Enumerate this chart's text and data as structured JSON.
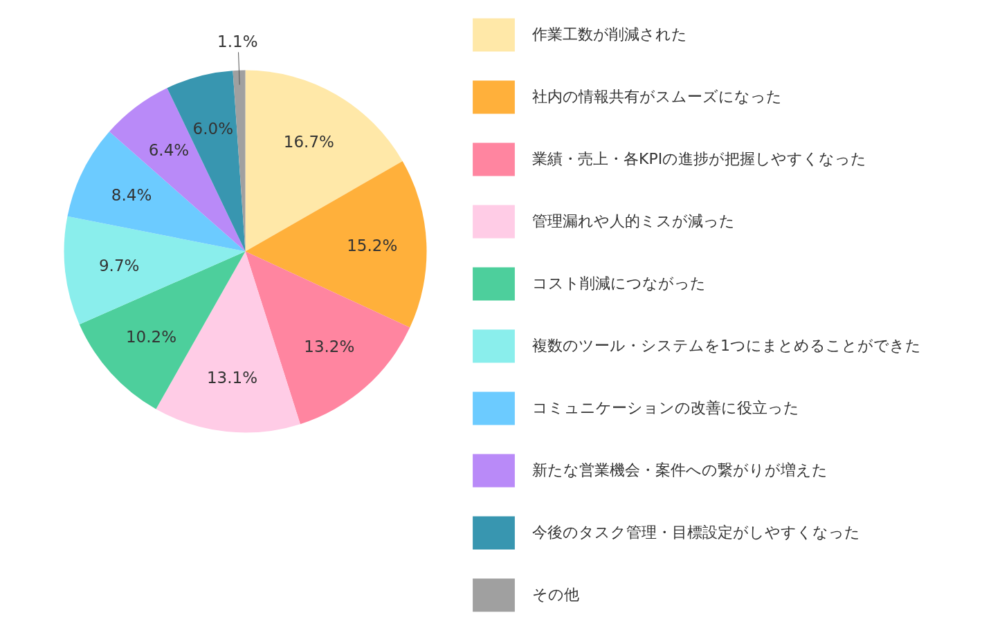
{
  "chart_data": {
    "type": "pie",
    "categories": [
      "作業工数が削減された",
      "社内の情報共有がスムーズになった",
      "業績・売上・各KPIの進捗が把握しやすくなった",
      "管理漏れや人的ミスが減った",
      "コスト削減につながった",
      "複数のツール・システムを1つにまとめることができた",
      "コミュニケーションの改善に役立った",
      "新たな営業機会・案件への繋がりが増えた",
      "今後のタスク管理・目標設定がしやすくなった",
      "その他"
    ],
    "values": [
      16.7,
      15.2,
      13.2,
      13.1,
      10.2,
      9.7,
      8.4,
      6.4,
      6.0,
      1.1
    ],
    "colors": [
      "#ffe8a8",
      "#ffb03b",
      "#ff85a0",
      "#ffcce6",
      "#4dcf9c",
      "#8aeeec",
      "#6ccbff",
      "#b98af8",
      "#3896b0",
      "#a0a0a0"
    ],
    "value_labels": [
      "16.7%",
      "15.2%",
      "13.2%",
      "13.1%",
      "10.2%",
      "9.7%",
      "8.4%",
      "6.4%",
      "6.0%",
      "1.1%"
    ],
    "legend": "right"
  }
}
